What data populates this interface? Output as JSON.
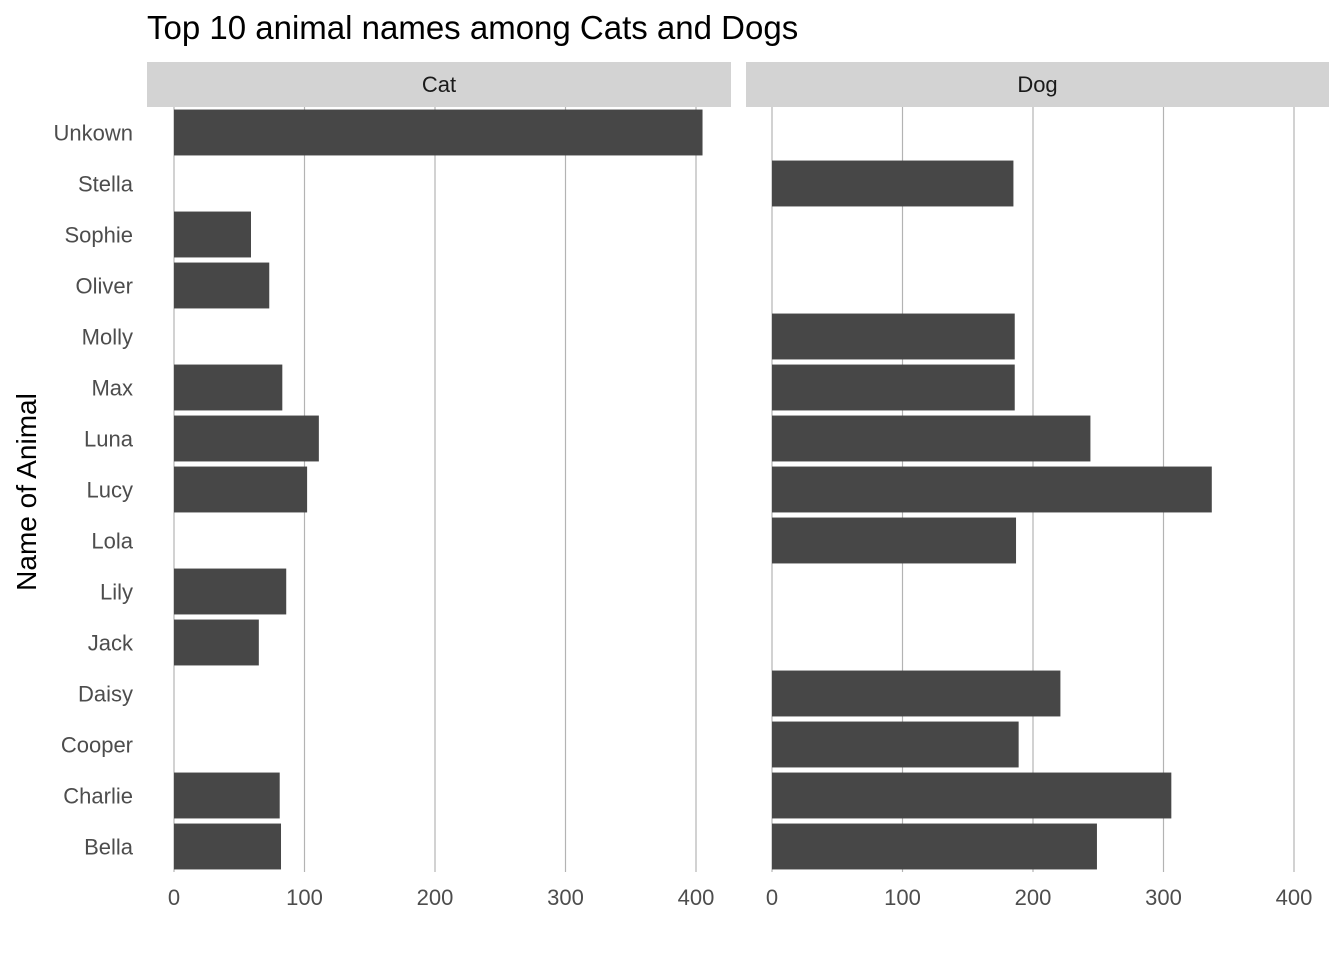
{
  "chart_data": {
    "type": "bar",
    "orientation": "horizontal",
    "title": "Top 10 animal names among Cats and Dogs",
    "xlabel": "",
    "ylabel": "Name of Animal",
    "xlim": [
      0,
      420
    ],
    "xticks": [
      0,
      100,
      200,
      300,
      400
    ],
    "grid": "vertical major only",
    "categories": [
      "Unkown",
      "Stella",
      "Sophie",
      "Oliver",
      "Molly",
      "Max",
      "Luna",
      "Lucy",
      "Lola",
      "Lily",
      "Jack",
      "Daisy",
      "Cooper",
      "Charlie",
      "Bella"
    ],
    "facets": [
      {
        "label": "Cat",
        "values": [
          405,
          null,
          59,
          73,
          null,
          83,
          111,
          102,
          null,
          86,
          65,
          null,
          null,
          81,
          82
        ]
      },
      {
        "label": "Dog",
        "values": [
          null,
          185,
          null,
          null,
          186,
          186,
          244,
          337,
          187,
          null,
          null,
          221,
          189,
          306,
          249
        ]
      }
    ],
    "bar_color": "#474747"
  }
}
